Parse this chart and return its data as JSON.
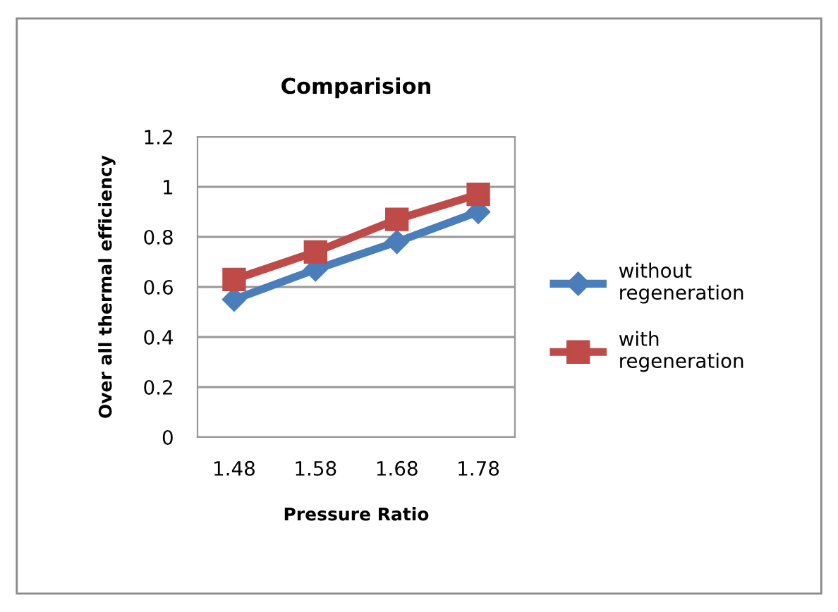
{
  "chart_data": {
    "type": "line",
    "title": "Comparision",
    "xlabel": "Pressure Ratio",
    "ylabel": "Over all thermal efficiency",
    "categories": [
      "1.48",
      "1.58",
      "1.68",
      "1.78"
    ],
    "series": [
      {
        "name": "without regeneration",
        "color": "#4a7ebb",
        "marker": "diamond",
        "values": [
          0.55,
          0.67,
          0.78,
          0.9
        ]
      },
      {
        "name": "with regeneration",
        "color": "#be4b48",
        "marker": "square",
        "values": [
          0.63,
          0.74,
          0.87,
          0.97
        ]
      }
    ],
    "ylim": [
      0,
      1.2
    ],
    "yticks": [
      0,
      0.2,
      0.4,
      0.6,
      0.8,
      1,
      1.2
    ],
    "grid": "y",
    "legend": "right"
  }
}
